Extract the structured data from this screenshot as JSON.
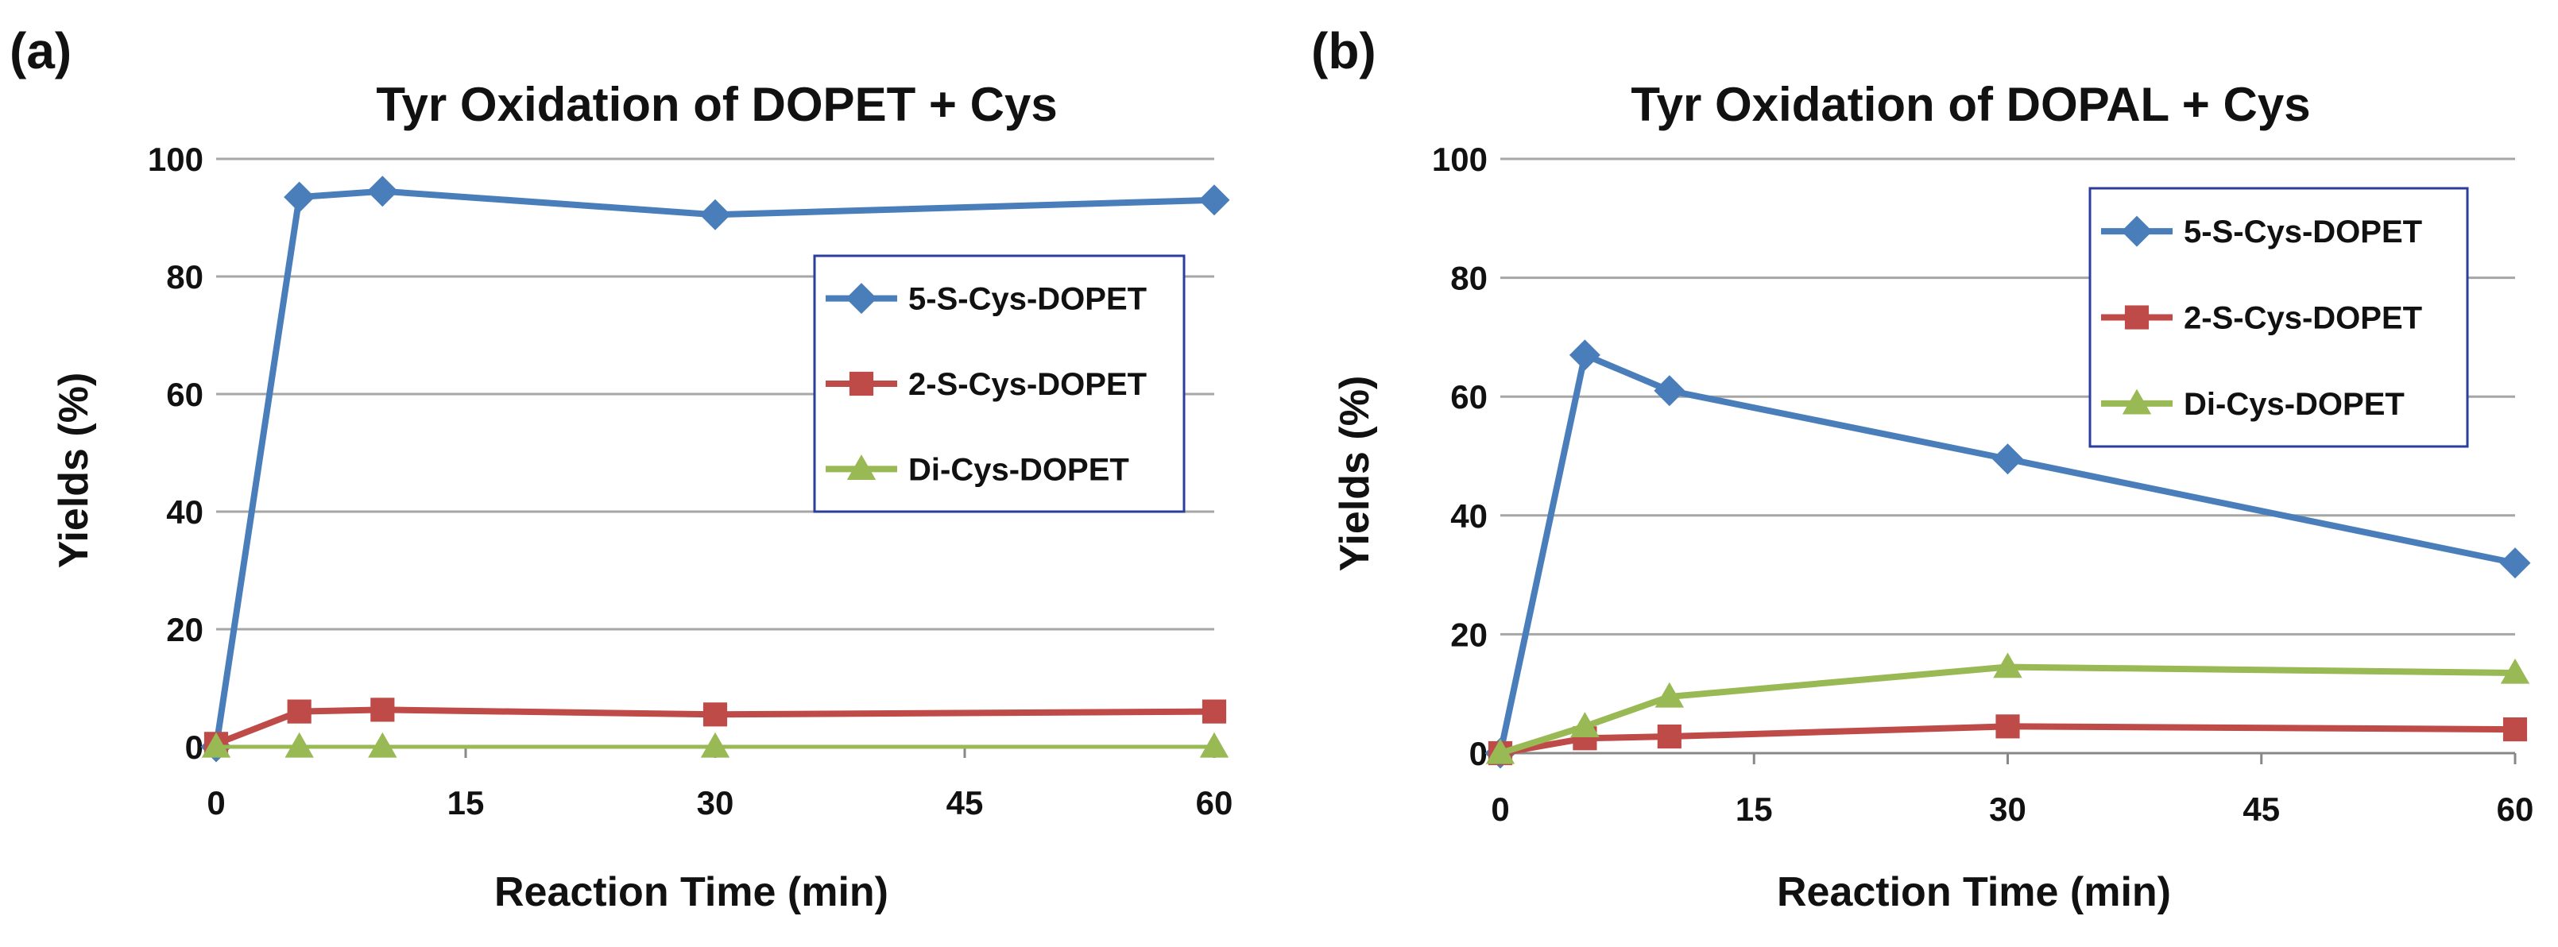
{
  "chart_data": [
    {
      "panel_label": "(a)",
      "type": "line",
      "title": "Tyr Oxidation of DOPET + Cys",
      "xlabel": "Reaction Time (min)",
      "ylabel": "Yields (%)",
      "xlim": [
        0,
        60
      ],
      "ylim": [
        0,
        100
      ],
      "xticks": [
        0,
        15,
        30,
        45,
        60
      ],
      "yticks": [
        0,
        20,
        40,
        60,
        80,
        100
      ],
      "grid": "horizontal",
      "legend_position": "right",
      "series": [
        {
          "name": "5-S-Cys-DOPET",
          "color": "#4a7ebb",
          "marker": "diamond",
          "x": [
            0,
            5,
            10,
            30,
            60
          ],
          "y": [
            0,
            93.5,
            94.5,
            90.5,
            93
          ]
        },
        {
          "name": "2-S-Cys-DOPET",
          "color": "#be4b48",
          "marker": "square",
          "x": [
            0,
            5,
            10,
            30,
            60
          ],
          "y": [
            0.5,
            6,
            6.3,
            5.5,
            6
          ]
        },
        {
          "name": "Di-Cys-DOPET",
          "color": "#98b954",
          "marker": "triangle",
          "x": [
            0,
            5,
            10,
            30,
            60
          ],
          "y": [
            0,
            0,
            0,
            0,
            0
          ]
        }
      ]
    },
    {
      "panel_label": "(b)",
      "type": "line",
      "title": "Tyr Oxidation of DOPAL + Cys",
      "xlabel": "Reaction Time (min)",
      "ylabel": "Yields (%)",
      "xlim": [
        0,
        60
      ],
      "ylim": [
        0,
        100
      ],
      "xticks": [
        0,
        15,
        30,
        45,
        60
      ],
      "yticks": [
        0,
        20,
        40,
        60,
        80,
        100
      ],
      "grid": "horizontal",
      "legend_position": "top-right",
      "series": [
        {
          "name": "5-S-Cys-DOPET",
          "color": "#4a7ebb",
          "marker": "diamond",
          "x": [
            0,
            5,
            10,
            30,
            60
          ],
          "y": [
            0,
            67,
            61,
            49.5,
            32
          ]
        },
        {
          "name": "2-S-Cys-DOPET",
          "color": "#be4b48",
          "marker": "square",
          "x": [
            0,
            5,
            10,
            30,
            60
          ],
          "y": [
            0,
            2.5,
            2.8,
            4.5,
            4
          ]
        },
        {
          "name": "Di-Cys-DOPET",
          "color": "#98b954",
          "marker": "triangle",
          "x": [
            0,
            5,
            10,
            30,
            60
          ],
          "y": [
            0,
            4.5,
            9.5,
            14.5,
            13.5
          ]
        }
      ]
    }
  ]
}
